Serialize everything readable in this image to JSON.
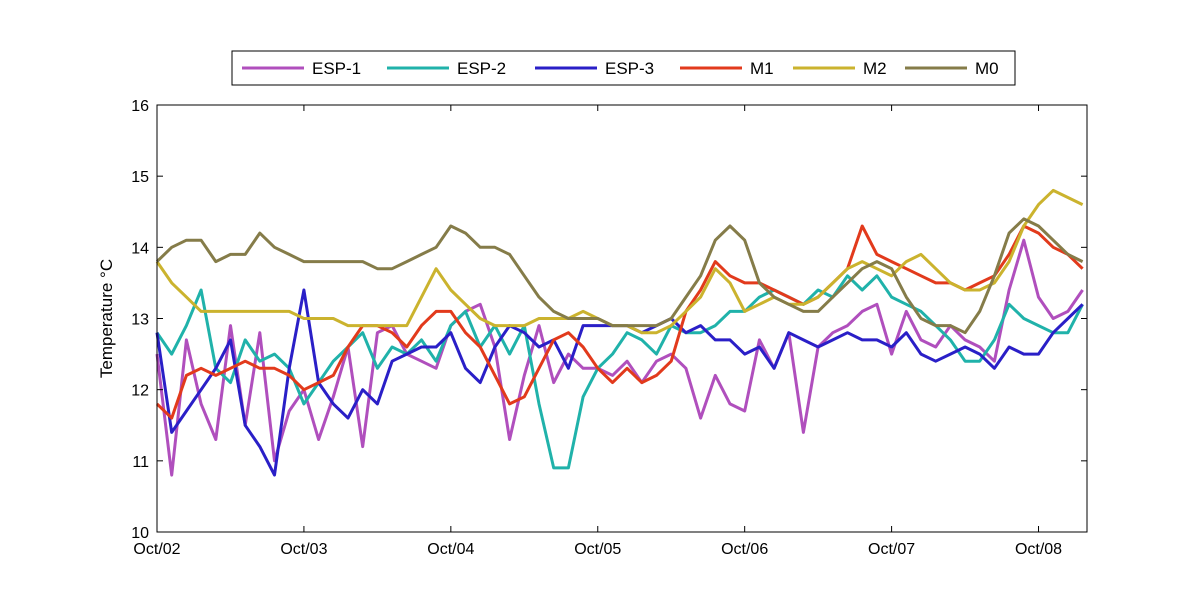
{
  "chart_data": {
    "type": "line",
    "title": "",
    "xlabel": "",
    "ylabel": "Temperature °C",
    "x_unit": "days",
    "xlim": [
      0,
      6.33
    ],
    "ylim": [
      10,
      16
    ],
    "x_ticks": [
      {
        "value": 0,
        "label": "Oct/02"
      },
      {
        "value": 1,
        "label": "Oct/03"
      },
      {
        "value": 2,
        "label": "Oct/04"
      },
      {
        "value": 3,
        "label": "Oct/05"
      },
      {
        "value": 4,
        "label": "Oct/06"
      },
      {
        "value": 5,
        "label": "Oct/07"
      },
      {
        "value": 6,
        "label": "Oct/08"
      }
    ],
    "y_ticks": [
      10,
      11,
      12,
      13,
      14,
      15,
      16
    ],
    "grid": false,
    "legend_position": "top-center",
    "series": [
      {
        "name": "ESP-1",
        "color": "#b04fbd",
        "x": [
          0,
          0.1,
          0.2,
          0.3,
          0.4,
          0.5,
          0.6,
          0.7,
          0.8,
          0.9,
          1.0,
          1.1,
          1.2,
          1.3,
          1.4,
          1.5,
          1.6,
          1.7,
          1.8,
          1.9,
          2.0,
          2.1,
          2.2,
          2.3,
          2.4,
          2.5,
          2.6,
          2.7,
          2.8,
          2.9,
          3.0,
          3.1,
          3.2,
          3.3,
          3.4,
          3.5,
          3.6,
          3.7,
          3.8,
          3.9,
          4.0,
          4.1,
          4.2,
          4.3,
          4.4,
          4.5,
          4.6,
          4.7,
          4.8,
          4.9,
          5.0,
          5.1,
          5.2,
          5.3,
          5.4,
          5.5,
          5.6,
          5.7,
          5.8,
          5.9,
          6.0,
          6.1,
          6.2,
          6.3
        ],
        "y": [
          12.5,
          10.8,
          12.7,
          11.8,
          11.3,
          12.9,
          11.5,
          12.8,
          11.0,
          11.7,
          12.0,
          11.3,
          11.9,
          12.6,
          11.2,
          12.8,
          12.9,
          12.5,
          12.4,
          12.3,
          12.9,
          13.1,
          13.2,
          12.6,
          11.3,
          12.2,
          12.9,
          12.1,
          12.5,
          12.3,
          12.3,
          12.2,
          12.4,
          12.1,
          12.4,
          12.5,
          12.3,
          11.6,
          12.2,
          11.8,
          11.7,
          12.7,
          12.3,
          12.8,
          11.4,
          12.6,
          12.8,
          12.9,
          13.1,
          13.2,
          12.5,
          13.1,
          12.7,
          12.6,
          12.9,
          12.7,
          12.6,
          12.4,
          13.4,
          14.1,
          13.3,
          13.0,
          13.1,
          13.4
        ]
      },
      {
        "name": "ESP-2",
        "color": "#20b2aa",
        "x": [
          0,
          0.1,
          0.2,
          0.3,
          0.4,
          0.5,
          0.6,
          0.7,
          0.8,
          0.9,
          1.0,
          1.1,
          1.2,
          1.3,
          1.4,
          1.5,
          1.6,
          1.7,
          1.8,
          1.9,
          2.0,
          2.1,
          2.2,
          2.3,
          2.4,
          2.5,
          2.6,
          2.7,
          2.8,
          2.9,
          3.0,
          3.1,
          3.2,
          3.3,
          3.4,
          3.5,
          3.6,
          3.7,
          3.8,
          3.9,
          4.0,
          4.1,
          4.2,
          4.3,
          4.4,
          4.5,
          4.6,
          4.7,
          4.8,
          4.9,
          5.0,
          5.1,
          5.2,
          5.3,
          5.4,
          5.5,
          5.6,
          5.7,
          5.8,
          5.9,
          6.0,
          6.1,
          6.2,
          6.3
        ],
        "y": [
          12.8,
          12.5,
          12.9,
          13.4,
          12.3,
          12.1,
          12.7,
          12.4,
          12.5,
          12.3,
          11.8,
          12.1,
          12.4,
          12.6,
          12.8,
          12.3,
          12.6,
          12.5,
          12.7,
          12.4,
          12.9,
          13.1,
          12.6,
          12.9,
          12.5,
          12.9,
          11.8,
          10.9,
          10.9,
          11.9,
          12.3,
          12.5,
          12.8,
          12.7,
          12.5,
          12.9,
          12.8,
          12.8,
          12.9,
          13.1,
          13.1,
          13.3,
          13.4,
          13.3,
          13.2,
          13.4,
          13.3,
          13.6,
          13.4,
          13.6,
          13.3,
          13.2,
          13.1,
          12.9,
          12.7,
          12.4,
          12.4,
          12.7,
          13.2,
          13.0,
          12.9,
          12.8,
          12.8,
          13.2
        ]
      },
      {
        "name": "ESP-3",
        "color": "#2a1fc7",
        "x": [
          0,
          0.1,
          0.2,
          0.3,
          0.4,
          0.5,
          0.6,
          0.7,
          0.8,
          0.9,
          1.0,
          1.1,
          1.2,
          1.3,
          1.4,
          1.5,
          1.6,
          1.7,
          1.8,
          1.9,
          2.0,
          2.1,
          2.2,
          2.3,
          2.4,
          2.5,
          2.6,
          2.7,
          2.8,
          2.9,
          3.0,
          3.1,
          3.2,
          3.3,
          3.4,
          3.5,
          3.6,
          3.7,
          3.8,
          3.9,
          4.0,
          4.1,
          4.2,
          4.3,
          4.4,
          4.5,
          4.6,
          4.7,
          4.8,
          4.9,
          5.0,
          5.1,
          5.2,
          5.3,
          5.4,
          5.5,
          5.6,
          5.7,
          5.8,
          5.9,
          6.0,
          6.1,
          6.2,
          6.3
        ],
        "y": [
          12.8,
          11.4,
          11.7,
          12.0,
          12.3,
          12.7,
          11.5,
          11.2,
          10.8,
          12.3,
          13.4,
          12.1,
          11.8,
          11.6,
          12.0,
          11.8,
          12.4,
          12.5,
          12.6,
          12.6,
          12.8,
          12.3,
          12.1,
          12.6,
          12.9,
          12.8,
          12.6,
          12.7,
          12.3,
          12.9,
          12.9,
          12.9,
          12.9,
          12.8,
          12.9,
          13.0,
          12.8,
          12.9,
          12.7,
          12.7,
          12.5,
          12.6,
          12.3,
          12.8,
          12.7,
          12.6,
          12.7,
          12.8,
          12.7,
          12.7,
          12.6,
          12.8,
          12.5,
          12.4,
          12.5,
          12.6,
          12.5,
          12.3,
          12.6,
          12.5,
          12.5,
          12.8,
          13.0,
          13.2
        ]
      },
      {
        "name": "M1",
        "color": "#e23a1c",
        "x": [
          0,
          0.1,
          0.2,
          0.3,
          0.4,
          0.5,
          0.6,
          0.7,
          0.8,
          0.9,
          1.0,
          1.1,
          1.2,
          1.3,
          1.4,
          1.5,
          1.6,
          1.7,
          1.8,
          1.9,
          2.0,
          2.1,
          2.2,
          2.3,
          2.4,
          2.5,
          2.6,
          2.7,
          2.8,
          2.9,
          3.0,
          3.1,
          3.2,
          3.3,
          3.4,
          3.5,
          3.6,
          3.7,
          3.8,
          3.9,
          4.0,
          4.1,
          4.2,
          4.3,
          4.4,
          4.5,
          4.6,
          4.7,
          4.8,
          4.9,
          5.0,
          5.1,
          5.2,
          5.3,
          5.4,
          5.5,
          5.6,
          5.7,
          5.8,
          5.9,
          6.0,
          6.1,
          6.2,
          6.3
        ],
        "y": [
          11.8,
          11.6,
          12.2,
          12.3,
          12.2,
          12.3,
          12.4,
          12.3,
          12.3,
          12.2,
          12.0,
          12.1,
          12.2,
          12.6,
          12.9,
          12.9,
          12.8,
          12.6,
          12.9,
          13.1,
          13.1,
          12.8,
          12.6,
          12.2,
          11.8,
          11.9,
          12.3,
          12.7,
          12.8,
          12.6,
          12.3,
          12.1,
          12.3,
          12.1,
          12.2,
          12.4,
          13.1,
          13.4,
          13.8,
          13.6,
          13.5,
          13.5,
          13.4,
          13.3,
          13.2,
          13.3,
          13.5,
          13.7,
          14.3,
          13.9,
          13.8,
          13.7,
          13.6,
          13.5,
          13.5,
          13.4,
          13.5,
          13.6,
          13.9,
          14.3,
          14.2,
          14.0,
          13.9,
          13.7
        ]
      },
      {
        "name": "M2",
        "color": "#cbb32e",
        "x": [
          0,
          0.1,
          0.2,
          0.3,
          0.4,
          0.5,
          0.6,
          0.7,
          0.8,
          0.9,
          1.0,
          1.1,
          1.2,
          1.3,
          1.4,
          1.5,
          1.6,
          1.7,
          1.8,
          1.9,
          2.0,
          2.1,
          2.2,
          2.3,
          2.4,
          2.5,
          2.6,
          2.7,
          2.8,
          2.9,
          3.0,
          3.1,
          3.2,
          3.3,
          3.4,
          3.5,
          3.6,
          3.7,
          3.8,
          3.9,
          4.0,
          4.1,
          4.2,
          4.3,
          4.4,
          4.5,
          4.6,
          4.7,
          4.8,
          4.9,
          5.0,
          5.1,
          5.2,
          5.3,
          5.4,
          5.5,
          5.6,
          5.7,
          5.8,
          5.9,
          6.0,
          6.1,
          6.2,
          6.3
        ],
        "y": [
          13.8,
          13.5,
          13.3,
          13.1,
          13.1,
          13.1,
          13.1,
          13.1,
          13.1,
          13.1,
          13.0,
          13.0,
          13.0,
          12.9,
          12.9,
          12.9,
          12.9,
          12.9,
          13.3,
          13.7,
          13.4,
          13.2,
          13.0,
          12.9,
          12.9,
          12.9,
          13.0,
          13.0,
          13.0,
          13.1,
          13.0,
          12.9,
          12.9,
          12.8,
          12.8,
          12.9,
          13.1,
          13.3,
          13.7,
          13.5,
          13.1,
          13.2,
          13.3,
          13.2,
          13.2,
          13.3,
          13.5,
          13.7,
          13.8,
          13.7,
          13.6,
          13.8,
          13.9,
          13.7,
          13.5,
          13.4,
          13.4,
          13.5,
          13.8,
          14.3,
          14.6,
          14.8,
          14.7,
          14.6
        ]
      },
      {
        "name": "M0",
        "color": "#857c49",
        "x": [
          0,
          0.1,
          0.2,
          0.3,
          0.4,
          0.5,
          0.6,
          0.7,
          0.8,
          0.9,
          1.0,
          1.1,
          1.2,
          1.3,
          1.4,
          1.5,
          1.6,
          1.7,
          1.8,
          1.9,
          2.0,
          2.1,
          2.2,
          2.3,
          2.4,
          2.5,
          2.6,
          2.7,
          2.8,
          2.9,
          3.0,
          3.1,
          3.2,
          3.3,
          3.4,
          3.5,
          3.6,
          3.7,
          3.8,
          3.9,
          4.0,
          4.1,
          4.2,
          4.3,
          4.4,
          4.5,
          4.6,
          4.7,
          4.8,
          4.9,
          5.0,
          5.1,
          5.2,
          5.3,
          5.4,
          5.5,
          5.6,
          5.7,
          5.8,
          5.9,
          6.0,
          6.1,
          6.2,
          6.3
        ],
        "y": [
          13.8,
          14.0,
          14.1,
          14.1,
          13.8,
          13.9,
          13.9,
          14.2,
          14.0,
          13.9,
          13.8,
          13.8,
          13.8,
          13.8,
          13.8,
          13.7,
          13.7,
          13.8,
          13.9,
          14.0,
          14.3,
          14.2,
          14.0,
          14.0,
          13.9,
          13.6,
          13.3,
          13.1,
          13.0,
          13.0,
          13.0,
          12.9,
          12.9,
          12.9,
          12.9,
          13.0,
          13.3,
          13.6,
          14.1,
          14.3,
          14.1,
          13.5,
          13.3,
          13.2,
          13.1,
          13.1,
          13.3,
          13.5,
          13.7,
          13.8,
          13.7,
          13.3,
          13.0,
          12.9,
          12.9,
          12.8,
          13.1,
          13.6,
          14.2,
          14.4,
          14.3,
          14.1,
          13.9,
          13.8
        ]
      }
    ]
  }
}
